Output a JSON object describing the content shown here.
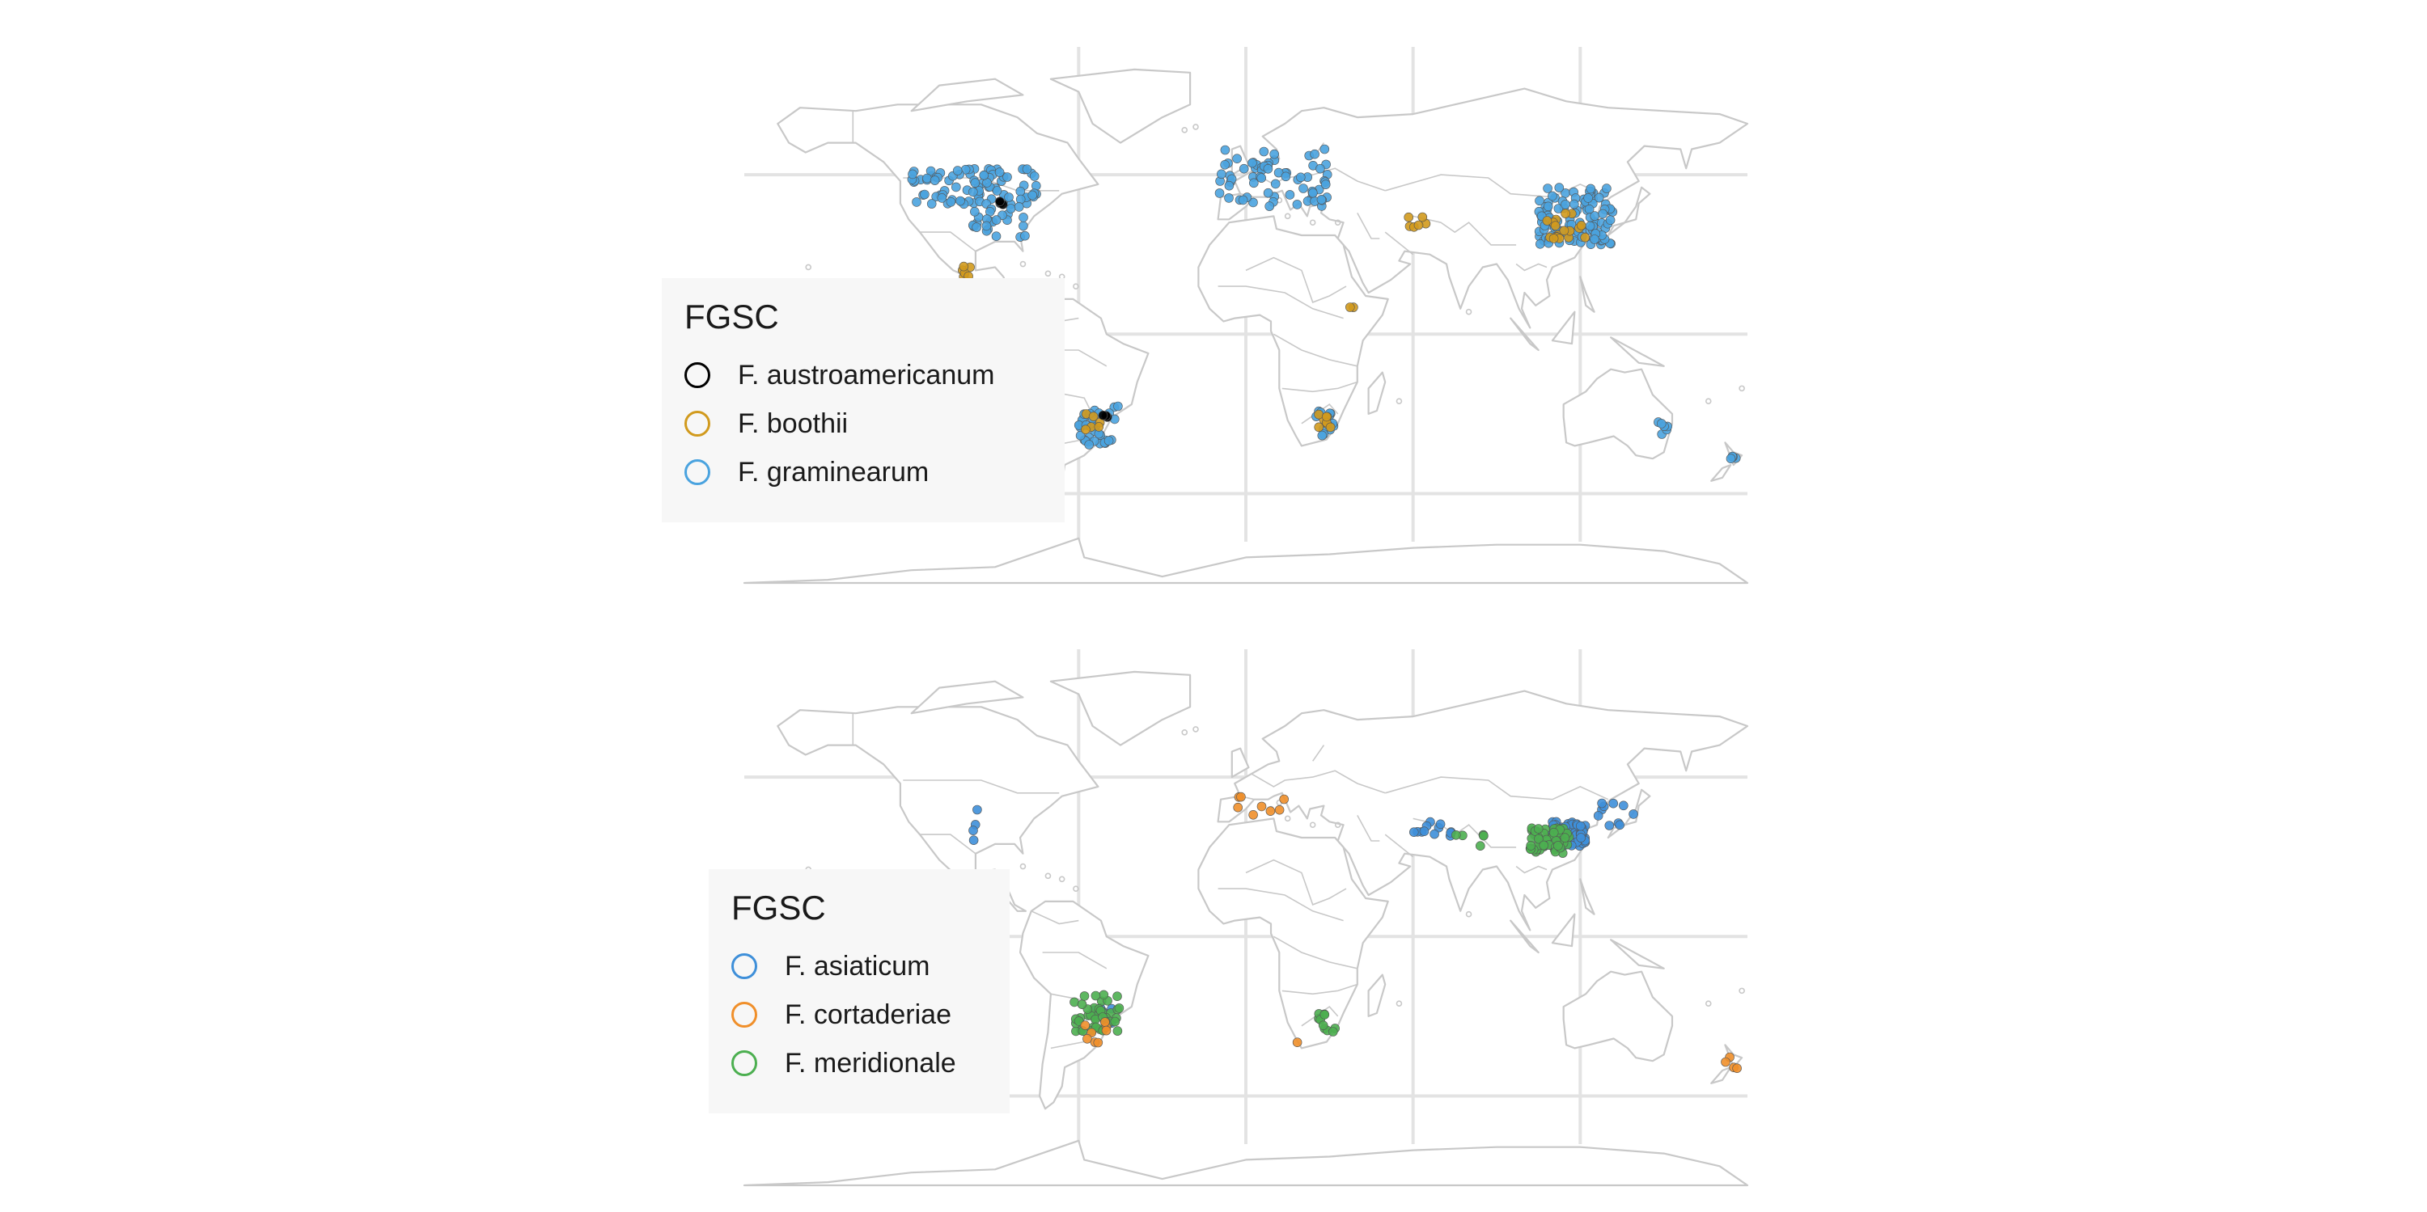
{
  "colors": {
    "land_stroke": "#c8c8c8",
    "grid": "#e3e3e3",
    "legend_bg": "#f7f7f7"
  },
  "panels": [
    {
      "id": "top",
      "legend": {
        "title": "FGSC",
        "items": [
          {
            "label": "F. austroamericanum",
            "color": "#000000"
          },
          {
            "label": "F. boothii",
            "color": "#D19A1D"
          },
          {
            "label": "F. graminearum",
            "color": "#4AA3DF"
          }
        ]
      },
      "points": [
        {
          "species": "F. graminearum",
          "count": 90,
          "lon": [
            -120,
            -75
          ],
          "lat": [
            40,
            52
          ]
        },
        {
          "species": "F. graminearum",
          "count": 25,
          "lon": [
            -98,
            -78
          ],
          "lat": [
            30,
            40
          ]
        },
        {
          "species": "F. graminearum",
          "count": 70,
          "lon": [
            -10,
            30
          ],
          "lat": [
            40,
            58
          ]
        },
        {
          "species": "F. graminearum",
          "count": 110,
          "lon": [
            105,
            132
          ],
          "lat": [
            28,
            46
          ]
        },
        {
          "species": "F. graminearum",
          "count": 35,
          "lon": [
            -60,
            -45
          ],
          "lat": [
            -35,
            -22
          ]
        },
        {
          "species": "F. graminearum",
          "count": 12,
          "lon": [
            24,
            32
          ],
          "lat": [
            -32,
            -24
          ]
        },
        {
          "species": "F. graminearum",
          "count": 6,
          "lon": [
            148,
            152
          ],
          "lat": [
            -32,
            -27
          ]
        },
        {
          "species": "F. graminearum",
          "count": 4,
          "lon": [
            174,
            177
          ],
          "lat": [
            -40,
            -36
          ]
        },
        {
          "species": "F. boothii",
          "count": 18,
          "lon": [
            108,
            122
          ],
          "lat": [
            30,
            38
          ]
        },
        {
          "species": "F. boothii",
          "count": 6,
          "lon": [
            -102,
            -98
          ],
          "lat": [
            18,
            22
          ]
        },
        {
          "species": "F. boothii",
          "count": 8,
          "lon": [
            26,
            31
          ],
          "lat": [
            -30,
            -25
          ]
        },
        {
          "species": "F. boothii",
          "count": 6,
          "lon": [
            58,
            66
          ],
          "lat": [
            33,
            37
          ]
        },
        {
          "species": "F. boothii",
          "count": 6,
          "lon": [
            -58,
            -52
          ],
          "lat": [
            -30,
            -25
          ]
        },
        {
          "species": "F. boothii",
          "count": 2,
          "lon": [
            36,
            40
          ],
          "lat": [
            7,
            10
          ]
        },
        {
          "species": "F. austroamericanum",
          "count": 3,
          "lon": [
            -92,
            -86
          ],
          "lat": [
            38,
            42
          ]
        },
        {
          "species": "F. austroamericanum",
          "count": 3,
          "lon": [
            -52,
            -48
          ],
          "lat": [
            -27,
            -24
          ]
        }
      ]
    },
    {
      "id": "bottom",
      "legend": {
        "title": "FGSC",
        "items": [
          {
            "label": "F. asiaticum",
            "color": "#3E8FD9"
          },
          {
            "label": "F. cortaderiae",
            "color": "#F08F2A"
          },
          {
            "label": "F. meridionale",
            "color": "#4CAF50"
          }
        ]
      },
      "points": [
        {
          "species": "F. asiaticum",
          "count": 90,
          "lon": [
            110,
            122
          ],
          "lat": [
            28,
            36
          ]
        },
        {
          "species": "F. asiaticum",
          "count": 10,
          "lon": [
            125,
            140
          ],
          "lat": [
            33,
            42
          ]
        },
        {
          "species": "F. asiaticum",
          "count": 12,
          "lon": [
            60,
            75
          ],
          "lat": [
            30,
            36
          ]
        },
        {
          "species": "F. asiaticum",
          "count": 4,
          "lon": [
            -98,
            -96
          ],
          "lat": [
            30,
            42
          ]
        },
        {
          "species": "F. asiaticum",
          "count": 10,
          "lon": [
            -55,
            -48
          ],
          "lat": [
            -28,
            -22
          ]
        },
        {
          "species": "F. meridionale",
          "count": 60,
          "lon": [
            102,
            116
          ],
          "lat": [
            26,
            34
          ]
        },
        {
          "species": "F. meridionale",
          "count": 40,
          "lon": [
            -62,
            -45
          ],
          "lat": [
            -30,
            -18
          ]
        },
        {
          "species": "F. meridionale",
          "count": 10,
          "lon": [
            26,
            32
          ],
          "lat": [
            -30,
            -22
          ]
        },
        {
          "species": "F. meridionale",
          "count": 5,
          "lon": [
            75,
            86
          ],
          "lat": [
            28,
            32
          ]
        },
        {
          "species": "F. cortaderiae",
          "count": 8,
          "lon": [
            -5,
            15
          ],
          "lat": [
            38,
            45
          ]
        },
        {
          "species": "F. cortaderiae",
          "count": 8,
          "lon": [
            -58,
            -50
          ],
          "lat": [
            -34,
            -26
          ]
        },
        {
          "species": "F. cortaderiae",
          "count": 4,
          "lon": [
            172,
            178
          ],
          "lat": [
            -42,
            -36
          ]
        },
        {
          "species": "F. cortaderiae",
          "count": 1,
          "lon": [
            17,
            19
          ],
          "lat": [
            -34,
            -33
          ]
        }
      ]
    }
  ]
}
